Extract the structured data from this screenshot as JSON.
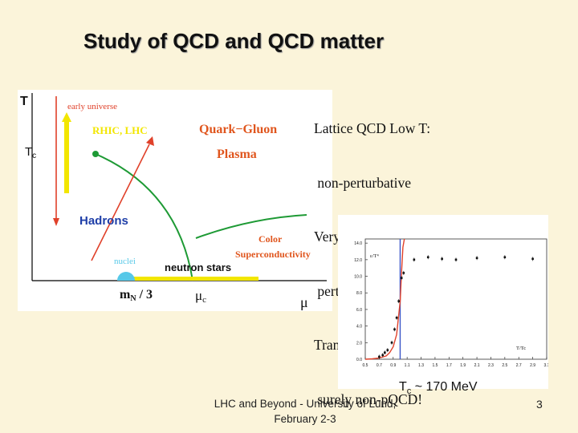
{
  "slide": {
    "title": "Study of QCD and QCD matter",
    "notes": [
      "Lattice QCD Low T:",
      " non-perturbative",
      "Very high T:",
      " perturbative",
      "Transition:",
      " surely non-pQCD!"
    ],
    "tc_note_main": "T",
    "tc_note_sub": "c",
    "tc_note_rest": " ~ 170 MeV",
    "footer_line1": "LHC and Beyond - University of Lund,",
    "footer_line2": "February 2-3",
    "page_number": "3"
  },
  "phase_diagram": {
    "y_axis_label": "T",
    "tc_label": "T",
    "tc_sub": "c",
    "x_axis_label": "μ",
    "mn_label": "m",
    "mn_sub": "N",
    "mn_rest": " / 3",
    "muc_label": "μ",
    "muc_sub": "c",
    "early_universe": "early universe",
    "rhic_lhc": "RHIC, LHC",
    "qgp_line1": "Quark−Gluon",
    "qgp_line2": "Plasma",
    "hadrons": "Hadrons",
    "color_sc_line1": "Color",
    "color_sc_line2": "Superconductivity",
    "nuclei": "nuclei",
    "neutron_stars": "neutron stars",
    "colors": {
      "red": "#e0412a",
      "green": "#1e9a35",
      "yellow": "#f2e600",
      "blue": "#1f3fa8",
      "cyan": "#56c8e8",
      "orange": "#e0561e"
    }
  },
  "chart_data": {
    "type": "scatter",
    "title": "",
    "ylabel": "ε/T⁴",
    "xlabel": "T/Tc",
    "xlim": [
      0.5,
      3.1
    ],
    "ylim": [
      0,
      14.5
    ],
    "x_ticks": [
      "0.5",
      "0.7",
      "0.9",
      "1.1",
      "1.3",
      "1.5",
      "1.7",
      "1.9",
      "2.1",
      "2.3",
      "2.5",
      "2.7",
      "2.9",
      "3.1"
    ],
    "y_ticks": [
      "0.0",
      "2.0",
      "4.0",
      "6.0",
      "8.0",
      "10.0",
      "12.0",
      "14.0"
    ],
    "vertical_line_x": 1.0,
    "points": [
      {
        "x": 0.7,
        "y": 0.3
      },
      {
        "x": 0.75,
        "y": 0.5
      },
      {
        "x": 0.78,
        "y": 0.8
      },
      {
        "x": 0.82,
        "y": 1.1
      },
      {
        "x": 0.88,
        "y": 2.0
      },
      {
        "x": 0.92,
        "y": 3.6
      },
      {
        "x": 0.95,
        "y": 5.0
      },
      {
        "x": 0.98,
        "y": 7.0
      },
      {
        "x": 1.02,
        "y": 9.8
      },
      {
        "x": 1.05,
        "y": 10.4
      },
      {
        "x": 1.2,
        "y": 12.0
      },
      {
        "x": 1.4,
        "y": 12.3
      },
      {
        "x": 1.6,
        "y": 12.1
      },
      {
        "x": 1.8,
        "y": 12.0
      },
      {
        "x": 2.1,
        "y": 12.2
      },
      {
        "x": 2.5,
        "y": 12.3
      },
      {
        "x": 2.9,
        "y": 12.1
      }
    ],
    "curve_x": [
      0.5,
      0.6,
      0.7,
      0.8,
      0.85,
      0.9,
      0.95,
      1.0,
      1.02,
      1.04,
      1.06
    ],
    "curve_y": [
      0.0,
      0.05,
      0.15,
      0.4,
      0.8,
      1.5,
      3.0,
      7.0,
      10.5,
      13.5,
      14.5
    ]
  }
}
